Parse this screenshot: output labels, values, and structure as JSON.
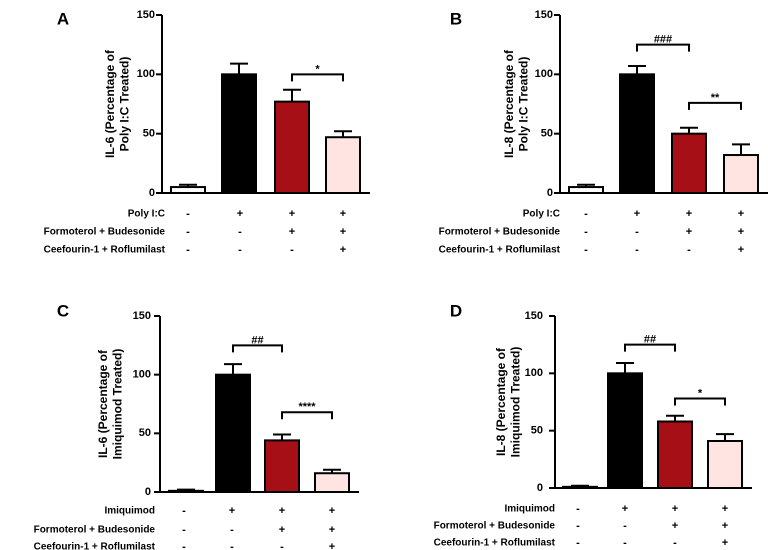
{
  "chart_data": [
    {
      "panel": "A",
      "type": "bar",
      "ylabel": [
        "IL-6 (Percentage of",
        "Poly I:C Treated)"
      ],
      "ylim": [
        0,
        150
      ],
      "yticks": [
        0,
        50,
        100,
        150
      ],
      "values": [
        5,
        100,
        77,
        47
      ],
      "errors": [
        2,
        9,
        10,
        5
      ],
      "colors": [
        "#ffffff",
        "#000000",
        "#a50f15",
        "#ffe4e1"
      ],
      "rows": [
        {
          "label": "Poly I:C",
          "signs": [
            "-",
            "+",
            "+",
            "+"
          ]
        },
        {
          "label": "Formoterol + Budesonide",
          "signs": [
            "-",
            "-",
            "+",
            "+"
          ]
        },
        {
          "label": "Ceefourin-1 + Roflumilast",
          "signs": [
            "-",
            "-",
            "-",
            "+"
          ]
        }
      ],
      "brackets": [
        {
          "from": 2,
          "to": 3,
          "y": 100,
          "label": "*"
        }
      ]
    },
    {
      "panel": "B",
      "type": "bar",
      "ylabel": [
        "IL-8 (Percentage of",
        "Poly I:C Treated)"
      ],
      "ylim": [
        0,
        150
      ],
      "yticks": [
        0,
        50,
        100,
        150
      ],
      "values": [
        5,
        100,
        50,
        32
      ],
      "errors": [
        2,
        7,
        5,
        9
      ],
      "colors": [
        "#ffffff",
        "#000000",
        "#a50f15",
        "#ffe4e1"
      ],
      "rows": [
        {
          "label": "Poly I:C",
          "signs": [
            "-",
            "+",
            "+",
            "+"
          ]
        },
        {
          "label": "Formoterol + Budesonide",
          "signs": [
            "-",
            "-",
            "+",
            "+"
          ]
        },
        {
          "label": "Ceefourin-1 + Roflumilast",
          "signs": [
            "-",
            "-",
            "-",
            "+"
          ]
        }
      ],
      "brackets": [
        {
          "from": 1,
          "to": 2,
          "y": 125,
          "label": "###"
        },
        {
          "from": 2,
          "to": 3,
          "y": 76,
          "label": "**"
        }
      ]
    },
    {
      "panel": "C",
      "type": "bar",
      "ylabel": [
        "IL-6 (Percentage of",
        "Imiquimod Treated)"
      ],
      "ylim": [
        0,
        150
      ],
      "yticks": [
        0,
        50,
        100,
        150
      ],
      "values": [
        1,
        100,
        44,
        16
      ],
      "errors": [
        1,
        9,
        5,
        3
      ],
      "colors": [
        "#ffffff",
        "#000000",
        "#a50f15",
        "#ffe4e1"
      ],
      "rows": [
        {
          "label": "Imiquimod",
          "signs": [
            "-",
            "+",
            "+",
            "+"
          ]
        },
        {
          "label": "Formoterol + Budesonide",
          "signs": [
            "-",
            "-",
            "+",
            "+"
          ]
        },
        {
          "label": "Ceefourin-1 + Roflumilast",
          "signs": [
            "-",
            "-",
            "-",
            "+"
          ]
        }
      ],
      "brackets": [
        {
          "from": 1,
          "to": 2,
          "y": 125,
          "label": "##"
        },
        {
          "from": 2,
          "to": 3,
          "y": 68,
          "label": "****"
        }
      ]
    },
    {
      "panel": "D",
      "type": "bar",
      "ylabel": [
        "IL-8 (Percentage of",
        "Imiquimod Treated)"
      ],
      "ylim": [
        0,
        150
      ],
      "yticks": [
        0,
        50,
        100,
        150
      ],
      "values": [
        1,
        100,
        58,
        41
      ],
      "errors": [
        1,
        9,
        5,
        6
      ],
      "colors": [
        "#ffffff",
        "#000000",
        "#a50f15",
        "#ffe4e1"
      ],
      "rows": [
        {
          "label": "Imiquimod",
          "signs": [
            "-",
            "+",
            "+",
            "+"
          ]
        },
        {
          "label": "Formoterol + Budesonide",
          "signs": [
            "-",
            "-",
            "+",
            "+"
          ]
        },
        {
          "label": "Ceefourin-1 + Roflumilast",
          "signs": [
            "-",
            "-",
            "-",
            "+"
          ]
        }
      ],
      "brackets": [
        {
          "from": 1,
          "to": 2,
          "y": 125,
          "label": "##"
        },
        {
          "from": 2,
          "to": 3,
          "y": 78,
          "label": "*"
        }
      ]
    }
  ]
}
